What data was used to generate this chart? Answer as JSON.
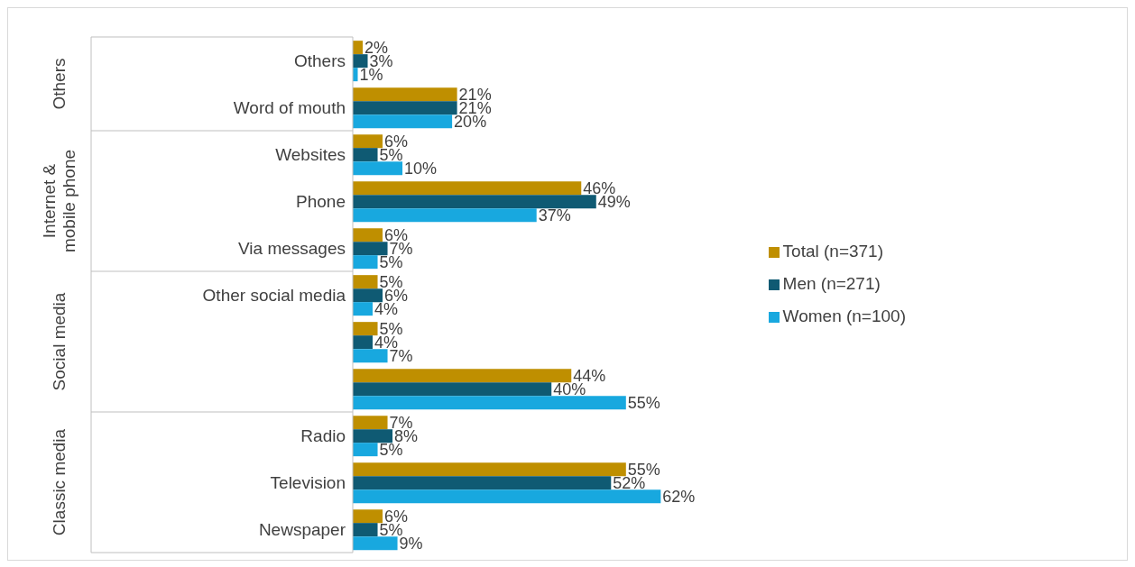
{
  "chart_data": {
    "type": "bar",
    "orientation": "horizontal",
    "categories": [
      "Others",
      "Word of mouth",
      "Websites",
      "Phone",
      "Via messages",
      "Other social media",
      null,
      null,
      "Radio",
      "Television",
      "Newspaper"
    ],
    "series": [
      {
        "name": "Total (n=371)",
        "color": "#bf8f00",
        "values": [
          2,
          21,
          6,
          46,
          6,
          5,
          5,
          44,
          7,
          55,
          6
        ],
        "value_labels": [
          "2%",
          "21%",
          "6%",
          "46%",
          "6%",
          "5%",
          "5%",
          "44%",
          "7%",
          "55%",
          "6%"
        ]
      },
      {
        "name": "Men (n=271)",
        "color": "#0f5a73",
        "values": [
          3,
          21,
          5,
          49,
          7,
          6,
          4,
          40,
          8,
          52,
          5
        ],
        "value_labels": [
          "3%",
          "21%",
          "5%",
          "49%",
          "7%",
          "6%",
          "4%",
          "40%",
          "8%",
          "52%",
          "5%"
        ]
      },
      {
        "name": "Women (n=100)",
        "color": "#18a8df",
        "values": [
          1,
          20,
          10,
          37,
          5,
          4,
          7,
          55,
          5,
          62,
          9
        ],
        "value_labels": [
          "1%",
          "20%",
          "10%",
          "37%",
          "5%",
          "4%",
          "7%",
          "55%",
          "5%",
          "62%",
          "9%"
        ]
      }
    ],
    "annotations": [
      "Others",
      "Internet & mobile phone",
      "Social media",
      "Classic media"
    ],
    "legend": "right"
  }
}
